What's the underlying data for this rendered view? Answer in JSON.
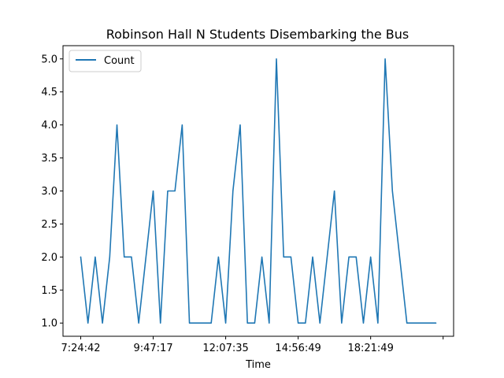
{
  "chart_data": {
    "type": "line",
    "title": "Robinson Hall N Students Disembarking the Bus",
    "xlabel": "Time",
    "ylabel": "",
    "x_tick_labels": [
      "7:24:42",
      "9:47:17",
      "12:07:35",
      "14:56:49",
      "18:21:49",
      ""
    ],
    "ylim": [
      0.8,
      5.2
    ],
    "y_ticks": [
      1.0,
      1.5,
      2.0,
      2.5,
      3.0,
      3.5,
      4.0,
      4.5,
      5.0
    ],
    "y_tick_labels": [
      "1.0",
      "1.5",
      "2.0",
      "2.5",
      "3.0",
      "3.5",
      "4.0",
      "4.5",
      "5.0"
    ],
    "grid": false,
    "legend": "top-left",
    "series": [
      {
        "name": "Count",
        "color": "#1f77b4",
        "values": [
          2,
          1,
          2,
          1,
          2,
          4,
          2,
          2,
          1,
          2,
          3,
          1,
          3,
          3,
          4,
          1,
          1,
          1,
          1,
          2,
          1,
          3,
          4,
          1,
          1,
          2,
          1,
          5,
          2,
          2,
          1,
          1,
          2,
          1,
          2,
          3,
          1,
          2,
          2,
          1,
          2,
          1,
          5,
          3,
          2,
          1,
          1,
          1,
          1,
          1
        ]
      }
    ]
  }
}
